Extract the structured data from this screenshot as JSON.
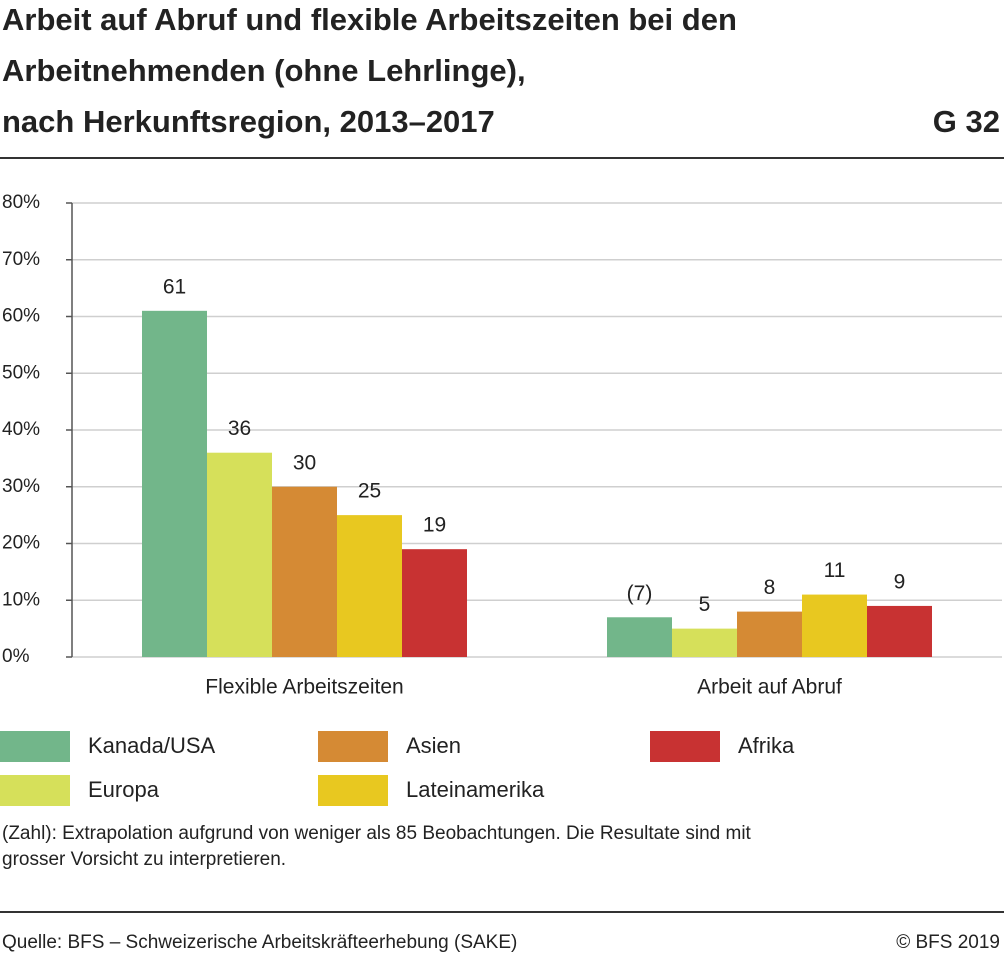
{
  "chart_data": {
    "type": "bar",
    "title": [
      "Arbeit auf Abruf und flexible Arbeitszeiten bei den",
      "Arbeitnehmenden (ohne Lehrlinge),",
      "nach Herkunftsregion, 2013–2017"
    ],
    "chart_number": "G 32",
    "categories": [
      "Flexible Arbeitszeiten",
      "Arbeit auf Abruf"
    ],
    "series": [
      {
        "name": "Kanada/USA",
        "color": "#72b68a",
        "values": [
          61,
          7
        ],
        "value_labels": [
          "61",
          "(7)"
        ]
      },
      {
        "name": "Europa",
        "color": "#d6e05a",
        "values": [
          36,
          5
        ],
        "value_labels": [
          "36",
          "5"
        ]
      },
      {
        "name": "Asien",
        "color": "#d58a34",
        "values": [
          30,
          8
        ],
        "value_labels": [
          "30",
          "8"
        ]
      },
      {
        "name": "Lateinamerika",
        "color": "#e8c820",
        "values": [
          25,
          11
        ],
        "value_labels": [
          "25",
          "11"
        ]
      },
      {
        "name": "Afrika",
        "color": "#c83232",
        "values": [
          19,
          9
        ],
        "value_labels": [
          "19",
          "9"
        ]
      }
    ],
    "ylim": [
      0,
      80
    ],
    "yticks": [
      {
        "value": 0,
        "label": "0%"
      },
      {
        "value": 10,
        "label": "10%"
      },
      {
        "value": 20,
        "label": "20%"
      },
      {
        "value": 30,
        "label": "30%"
      },
      {
        "value": 40,
        "label": "40%"
      },
      {
        "value": 50,
        "label": "50%"
      },
      {
        "value": 60,
        "label": "60%"
      },
      {
        "value": 70,
        "label": "70%"
      },
      {
        "value": 80,
        "label": "80%"
      }
    ],
    "grid": true,
    "note": [
      "(Zahl): Extrapolation aufgrund von weniger als 85 Beobachtungen. Die Resultate sind mit",
      "grosser Vorsicht zu interpretieren."
    ],
    "source": "Quelle: BFS – Schweizerische Arbeitskräfteerhebung (SAKE)",
    "copyright": "© BFS 2019"
  }
}
